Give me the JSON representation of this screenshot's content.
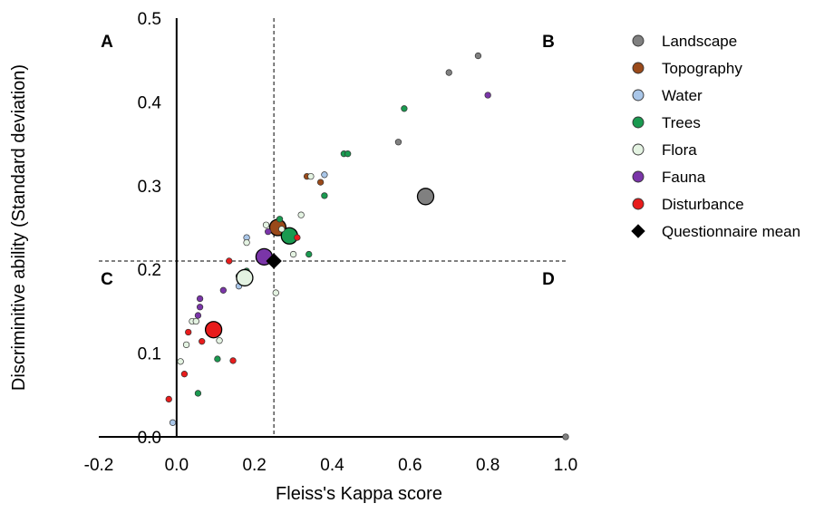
{
  "chart_data": {
    "type": "scatter",
    "title": "",
    "xlabel": "Fleiss's Kappa score",
    "ylabel": "Discriminitive ability (Standard deviation)",
    "xlim": [
      -0.2,
      1.0
    ],
    "ylim": [
      0.0,
      0.5
    ],
    "xticks": [
      "-0.2",
      "0.0",
      "0.2",
      "0.4",
      "0.6",
      "0.8",
      "1.0"
    ],
    "yticks": [
      "0.0",
      "0.1",
      "0.2",
      "0.3",
      "0.4",
      "0.5"
    ],
    "grid": false,
    "legend_position": "right",
    "reference_lines": {
      "x": 0.25,
      "y": 0.21
    },
    "quadrant_labels": [
      "A",
      "B",
      "C",
      "D"
    ],
    "series": [
      {
        "name": "Landscape",
        "color": "#808080",
        "points": [
          {
            "x": 0.775,
            "y": 0.455
          },
          {
            "x": 0.7,
            "y": 0.435
          },
          {
            "x": 0.57,
            "y": 0.352
          },
          {
            "x": 0.64,
            "y": 0.287,
            "mean": true
          },
          {
            "x": 1.0,
            "y": 0.0
          }
        ]
      },
      {
        "name": "Topography",
        "color": "#9a4a1a",
        "points": [
          {
            "x": 0.335,
            "y": 0.311
          },
          {
            "x": 0.37,
            "y": 0.304
          },
          {
            "x": 0.26,
            "y": 0.25,
            "mean": true
          }
        ]
      },
      {
        "name": "Water",
        "color": "#a9c6e8",
        "points": [
          {
            "x": 0.38,
            "y": 0.313
          },
          {
            "x": 0.18,
            "y": 0.238
          },
          {
            "x": 0.16,
            "y": 0.18
          },
          {
            "x": -0.01,
            "y": 0.017
          }
        ]
      },
      {
        "name": "Trees",
        "color": "#1a9a50",
        "points": [
          {
            "x": 0.585,
            "y": 0.392
          },
          {
            "x": 0.43,
            "y": 0.338
          },
          {
            "x": 0.44,
            "y": 0.338
          },
          {
            "x": 0.38,
            "y": 0.288
          },
          {
            "x": 0.265,
            "y": 0.26
          },
          {
            "x": 0.29,
            "y": 0.24,
            "mean": true
          },
          {
            "x": 0.34,
            "y": 0.218
          },
          {
            "x": 0.18,
            "y": 0.198
          },
          {
            "x": 0.16,
            "y": 0.192
          },
          {
            "x": 0.105,
            "y": 0.093
          },
          {
            "x": 0.055,
            "y": 0.052
          }
        ]
      },
      {
        "name": "Flora",
        "color": "#e4f3e2",
        "points": [
          {
            "x": 0.345,
            "y": 0.311
          },
          {
            "x": 0.32,
            "y": 0.265
          },
          {
            "x": 0.23,
            "y": 0.253
          },
          {
            "x": 0.18,
            "y": 0.232
          },
          {
            "x": 0.27,
            "y": 0.248
          },
          {
            "x": 0.3,
            "y": 0.218
          },
          {
            "x": 0.175,
            "y": 0.19,
            "mean": true
          },
          {
            "x": 0.255,
            "y": 0.172
          },
          {
            "x": 0.04,
            "y": 0.138
          },
          {
            "x": 0.05,
            "y": 0.138
          },
          {
            "x": 0.11,
            "y": 0.115
          },
          {
            "x": 0.025,
            "y": 0.11
          },
          {
            "x": 0.01,
            "y": 0.09
          }
        ]
      },
      {
        "name": "Fauna",
        "color": "#7a35a8",
        "points": [
          {
            "x": 0.8,
            "y": 0.408
          },
          {
            "x": 0.235,
            "y": 0.245
          },
          {
            "x": 0.225,
            "y": 0.215,
            "mean": true
          },
          {
            "x": 0.12,
            "y": 0.175
          },
          {
            "x": 0.06,
            "y": 0.165
          },
          {
            "x": 0.06,
            "y": 0.155
          },
          {
            "x": 0.055,
            "y": 0.145
          }
        ]
      },
      {
        "name": "Disturbance",
        "color": "#e81c1c",
        "points": [
          {
            "x": 0.135,
            "y": 0.21
          },
          {
            "x": 0.31,
            "y": 0.238
          },
          {
            "x": 0.095,
            "y": 0.128,
            "mean": true
          },
          {
            "x": 0.03,
            "y": 0.125
          },
          {
            "x": 0.065,
            "y": 0.114
          },
          {
            "x": 0.145,
            "y": 0.091
          },
          {
            "x": 0.02,
            "y": 0.075
          },
          {
            "x": -0.02,
            "y": 0.045
          }
        ]
      },
      {
        "name": "Questionnaire mean",
        "color": "#000000",
        "marker": "diamond",
        "points": [
          {
            "x": 0.25,
            "y": 0.21
          }
        ]
      }
    ]
  }
}
